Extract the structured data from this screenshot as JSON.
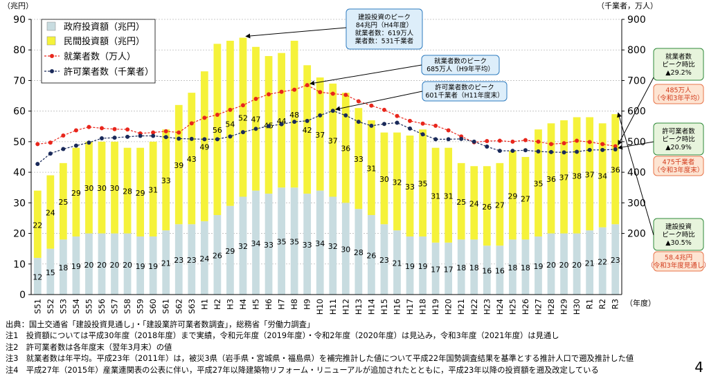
{
  "chart_data": {
    "type": "bar",
    "y_left_label": "（兆円）",
    "y_right_label": "（千業者，万人）",
    "x_unit_label": "（年度）",
    "ylim_left": [
      0,
      90
    ],
    "yticks_left": [
      0,
      10,
      20,
      30,
      40,
      50,
      60,
      70,
      80,
      90
    ],
    "ylim_right": [
      0,
      900
    ],
    "yticks_right": [
      200,
      300,
      400,
      500,
      600,
      700,
      800,
      900
    ],
    "categories": [
      "S51",
      "S52",
      "S53",
      "S54",
      "S55",
      "S56",
      "S57",
      "S58",
      "S59",
      "S60",
      "S61",
      "S62",
      "S63",
      "H1",
      "H2",
      "H3",
      "H4",
      "H5",
      "H6",
      "H7",
      "H8",
      "H9",
      "H10",
      "H11",
      "H12",
      "H13",
      "H14",
      "H15",
      "H16",
      "H17",
      "H18",
      "H19",
      "H20",
      "H21",
      "H22",
      "H23",
      "H24",
      "H25",
      "H26",
      "H27",
      "H28",
      "H29",
      "H30",
      "R1",
      "R2",
      "R3"
    ],
    "series": [
      {
        "name": "政府投資額（兆円）",
        "color": "#c8dce0",
        "stack": true,
        "values": [
          12,
          15,
          18,
          19,
          20,
          20,
          20,
          20,
          19,
          19,
          21,
          23,
          23,
          24,
          26,
          29,
          32,
          34,
          33,
          35,
          35,
          33,
          34,
          32,
          30,
          28,
          26,
          23,
          21,
          19,
          19,
          17,
          17,
          18,
          18,
          16,
          16,
          18,
          18,
          19,
          20,
          20,
          20,
          21,
          22,
          23
        ]
      },
      {
        "name": "民間投資額（兆円）",
        "color": "#f5f23a",
        "stack": true,
        "values": [
          22,
          24,
          25,
          29,
          30,
          30,
          30,
          28,
          29,
          31,
          33,
          39,
          43,
          49,
          56,
          54,
          52,
          47,
          45,
          44,
          48,
          42,
          37,
          37,
          36,
          33,
          31,
          30,
          32,
          33,
          35,
          31,
          31,
          25,
          24,
          26,
          27,
          29,
          27,
          35,
          36,
          37,
          38,
          37,
          34,
          36
        ]
      },
      {
        "name": "就業者数（万人）",
        "color": "#e8261c",
        "axis": "right",
        "values": [
          492,
          497,
          520,
          537,
          548,
          544,
          541,
          540,
          527,
          530,
          534,
          530,
          560,
          578,
          588,
          604,
          619,
          640,
          655,
          663,
          670,
          685,
          662,
          657,
          653,
          632,
          618,
          604,
          584,
          568,
          559,
          552,
          537,
          517,
          498,
          502,
          503,
          500,
          505,
          500,
          492,
          495,
          503,
          499,
          492,
          485
        ]
      },
      {
        "name": "許可業者数（千業者）",
        "color": "#1a2a5a",
        "axis": "right",
        "values": [
          427,
          461,
          476,
          487,
          497,
          511,
          513,
          516,
          519,
          519,
          515,
          510,
          509,
          508,
          508,
          517,
          531,
          542,
          551,
          557,
          565,
          568,
          586,
          601,
          586,
          565,
          552,
          558,
          562,
          543,
          524,
          508,
          508,
          509,
          500,
          484,
          470,
          470,
          472,
          468,
          466,
          465,
          467,
          473,
          473,
          475
        ]
      }
    ],
    "data_labels": {
      "government": [
        "12",
        "15",
        "18",
        "19",
        "20",
        "20",
        "20",
        "20",
        "19",
        "19",
        "21",
        "23",
        "23",
        "24",
        "26",
        "29",
        "32",
        "34",
        "33",
        "35",
        "35",
        "33",
        "34",
        "32",
        "30",
        "28",
        "26",
        "23",
        "21",
        "19",
        "19",
        "17",
        "17",
        "18",
        "18",
        "16",
        "16",
        "18",
        "18",
        "19",
        "20",
        "20",
        "20",
        "21",
        "22",
        "23"
      ],
      "private": [
        "22",
        "24",
        "25",
        "29",
        "30",
        "30",
        "30",
        "28",
        "29",
        "31",
        "33",
        "39",
        "43",
        "49",
        "56",
        "54",
        "52",
        "47",
        "45",
        "44",
        "48",
        "42",
        "37",
        "37",
        "36",
        "33",
        "31",
        "30",
        "32",
        "33",
        "35",
        "31",
        "31",
        "25",
        "24",
        "26",
        "27",
        "29",
        "27",
        "35",
        "36",
        "37",
        "38",
        "37",
        "34",
        "36"
      ]
    },
    "legend_placement": "top-left",
    "grid": true,
    "callouts": [
      {
        "lines": [
          "建設投資のピーク",
          "84兆円（H4年度）",
          "就業者数：619万人",
          "業者数：531千業者"
        ],
        "border": "#2e7bbf",
        "fill": "#ddeefa",
        "text_color": "#000000",
        "target_category": "H4",
        "target_value": 84,
        "target_axis": "left"
      },
      {
        "lines": [
          "就業者数のピーク",
          "685万人（H9年平均）"
        ],
        "border": "#2e7bbf",
        "fill": "#ddeefa",
        "text_color": "#000000",
        "target_category": "H9",
        "target_value": 685,
        "target_axis": "right"
      },
      {
        "lines": [
          "許可業者数のピーク",
          "601千業者（H11年度末）"
        ],
        "border": "#2e7bbf",
        "fill": "#ddeefa",
        "text_color": "#000000",
        "target_category": "H11",
        "target_value": 601,
        "target_axis": "right"
      },
      {
        "lines": [
          "就業者数",
          "ピーク時比",
          "▲29.2%"
        ],
        "border": "#2f8a3a",
        "fill": "#e7f4dc",
        "text_color": "#000000",
        "target_category": "R3",
        "target_value": 485,
        "target_axis": "right"
      },
      {
        "lines": [
          "485万人",
          "（令和3年平均）"
        ],
        "border": "#e8744a",
        "fill": "#fde4d2",
        "text_color": "#d23b1c"
      },
      {
        "lines": [
          "許可業者数",
          "ピーク時比",
          "▲20.9%"
        ],
        "border": "#2f8a3a",
        "fill": "#e7f4dc",
        "text_color": "#000000",
        "target_category": "R3",
        "target_value": 475,
        "target_axis": "right"
      },
      {
        "lines": [
          "475千業者",
          "（令和3年度末）"
        ],
        "border": "#e8744a",
        "fill": "#fde4d2",
        "text_color": "#d23b1c"
      },
      {
        "lines": [
          "建設投資",
          "ピーク時比",
          "▲30.5%"
        ],
        "border": "#2f8a3a",
        "fill": "#e7f4dc",
        "text_color": "#000000",
        "target_category": "R3",
        "target_value": 59,
        "target_axis": "left"
      },
      {
        "lines": [
          "58.4兆円",
          "（令和3年度見通し）"
        ],
        "border": "#e8744a",
        "fill": "#fde4d2",
        "text_color": "#d23b1c"
      }
    ]
  },
  "notes": [
    "出典：国土交通省「建設投資見通し」・「建設業許可業者数調査」，総務省「労働力調査」",
    "注1　投資額については平成30年度（2018年度）まで実績，令和元年度（2019年度）・令和2年度（2020年度）は見込み，令和3年度（2021年度）は見通し",
    "注2　許可業者数は各年度末（翌年3月末）の値",
    "注3　就業者数は年平均。平成23年（2011年）は，被災3県（岩手県・宮城県・福島県）を補完推計した値について平成22年国勢調査結果を基準とする推計人口で遡及推計した値",
    "注4　平成27年（2015年）産業連関表の公表に伴い，平成27年以降建築物リフォーム・リニューアルが追加されたとともに，平成23年以降の投資額を遡及改定している"
  ],
  "page_number": "4"
}
